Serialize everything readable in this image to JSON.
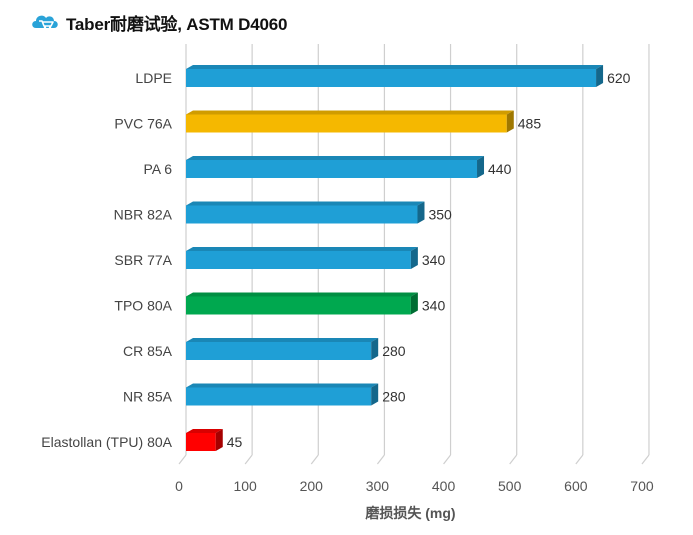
{
  "header": {
    "title": "Taber耐磨试验, ASTM D4060",
    "logo_icon": "cloud-cart-logo-icon"
  },
  "chart_data": {
    "type": "bar",
    "orientation": "horizontal",
    "title": "Taber耐磨试验, ASTM D4060",
    "xlabel": "磨损损失 (mg)",
    "ylabel": "",
    "xlim": [
      0,
      700
    ],
    "xticks": [
      0,
      100,
      200,
      300,
      400,
      500,
      600,
      700
    ],
    "grid": "vertical",
    "categories": [
      "LDPE",
      "PVC 76A",
      "PA 6",
      "NBR 82A",
      "SBR 77A",
      "TPO 80A",
      "CR 85A",
      "NR 85A",
      "Elastollan (TPU) 80A"
    ],
    "values": [
      620,
      485,
      440,
      350,
      340,
      340,
      280,
      280,
      45
    ],
    "data_labels": [
      "620",
      "485",
      "440",
      "350",
      "340",
      "340",
      "280",
      "280",
      "45"
    ],
    "colors": [
      "#1f9fd6",
      "#f5b800",
      "#1f9fd6",
      "#1f9fd6",
      "#1f9fd6",
      "#00a84f",
      "#1f9fd6",
      "#1f9fd6",
      "#ff0000"
    ]
  }
}
